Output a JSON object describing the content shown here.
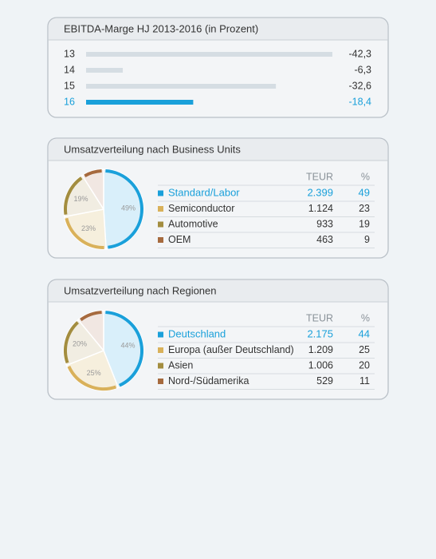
{
  "chart_data": [
    {
      "type": "hbar",
      "title": "EBITDA-Marge HJ 2013-2016 (in Prozent)",
      "categories": [
        "13",
        "14",
        "15",
        "16"
      ],
      "values": [
        -42.3,
        -6.3,
        -32.6,
        -18.4
      ],
      "value_labels": [
        "-42,3",
        "-6,3",
        "-32,6",
        "-18,4"
      ],
      "xlim": [
        0,
        -42.3
      ],
      "color": "#d5dde3",
      "highlight": 3,
      "highlight_color": "#1aa0da"
    },
    {
      "type": "pie",
      "title": "Umsatzverteilung nach Business Units",
      "categories": [
        "Standard/Labor",
        "Semiconductor",
        "Automotive",
        "OEM"
      ],
      "series": [
        {
          "name": "TEUR",
          "values": [
            2399,
            1124,
            933,
            463
          ],
          "value_labels": [
            "2.399",
            "1.124",
            "933",
            "463"
          ]
        },
        {
          "name": "%",
          "values": [
            49,
            23,
            19,
            9
          ],
          "value_labels": [
            "49%",
            "23%",
            "19%",
            null
          ]
        }
      ],
      "colors": [
        "#1aa0da",
        "#d9b15a",
        "#a38d3f",
        "#a66a3e"
      ],
      "highlight": 0,
      "highlight_color": "#1aa0da"
    },
    {
      "type": "pie",
      "title": "Umsatzverteilung nach Regionen",
      "categories": [
        "Deutschland",
        "Europa (außer Deutschland)",
        "Asien",
        "Nord-/Südamerika"
      ],
      "series": [
        {
          "name": "TEUR",
          "values": [
            2175,
            1209,
            1006,
            529
          ],
          "value_labels": [
            "2.175",
            "1.209",
            "1.006",
            "529"
          ]
        },
        {
          "name": "%",
          "values": [
            44,
            25,
            20,
            11
          ],
          "value_labels": [
            "44%",
            "25%",
            "20%",
            null
          ]
        }
      ],
      "colors": [
        "#1aa0da",
        "#d9b15a",
        "#a38d3f",
        "#a66a3e"
      ],
      "highlight": 0,
      "highlight_color": "#1aa0da"
    }
  ]
}
